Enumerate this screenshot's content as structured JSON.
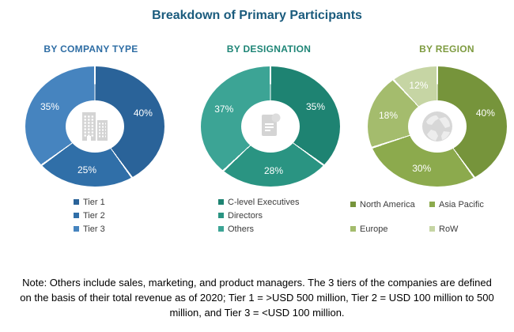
{
  "title": "Breakdown of Primary Participants",
  "title_color": "#1A5B7D",
  "note": "Note: Others include sales, marketing, and product managers. The 3 tiers of the companies are defined on the basis of their total revenue as of 2020; Tier 1 = >USD 500 million, Tier 2 = USD 100 million to 500 million, and Tier 3 = <USD 100 million.",
  "chart_data": [
    {
      "type": "pie",
      "subtype": "donut",
      "title": "BY COMPANY TYPE",
      "title_color": "#2E6DA4",
      "center_icon": "building-icon",
      "data_labels": [
        "40%",
        "25%",
        "35%"
      ],
      "segments": [
        {
          "label": "Tier 1",
          "value": 40,
          "color": "#2A6399"
        },
        {
          "label": "Tier 2",
          "value": 25,
          "color": "#306FA8"
        },
        {
          "label": "Tier 3",
          "value": 35,
          "color": "#4684BF"
        }
      ],
      "legend_position": "bottom",
      "legend_columns": 1
    },
    {
      "type": "pie",
      "subtype": "donut",
      "title": "BY DESIGNATION",
      "title_color": "#1E8576",
      "center_icon": "document-icon",
      "data_labels": [
        "35%",
        "28%",
        "37%"
      ],
      "segments": [
        {
          "label": "C-level Executives",
          "value": 35,
          "color": "#1E8372"
        },
        {
          "label": "Directors",
          "value": 28,
          "color": "#2A9482"
        },
        {
          "label": "Others",
          "value": 37,
          "color": "#3CA495"
        }
      ],
      "legend_position": "bottom",
      "legend_columns": 1
    },
    {
      "type": "pie",
      "subtype": "donut",
      "title": "BY REGION",
      "title_color": "#7E9B40",
      "center_icon": "globe-icon",
      "data_labels": [
        "40%",
        "30%",
        "18%",
        "12%"
      ],
      "segments": [
        {
          "label": "North America",
          "value": 40,
          "color": "#76943B"
        },
        {
          "label": "Asia Pacific",
          "value": 30,
          "color": "#8CAA4D"
        },
        {
          "label": "Europe",
          "value": 18,
          "color": "#A4BC6D"
        },
        {
          "label": "RoW",
          "value": 12,
          "color": "#C6D5A4"
        }
      ],
      "legend_position": "bottom",
      "legend_columns": 2
    }
  ]
}
